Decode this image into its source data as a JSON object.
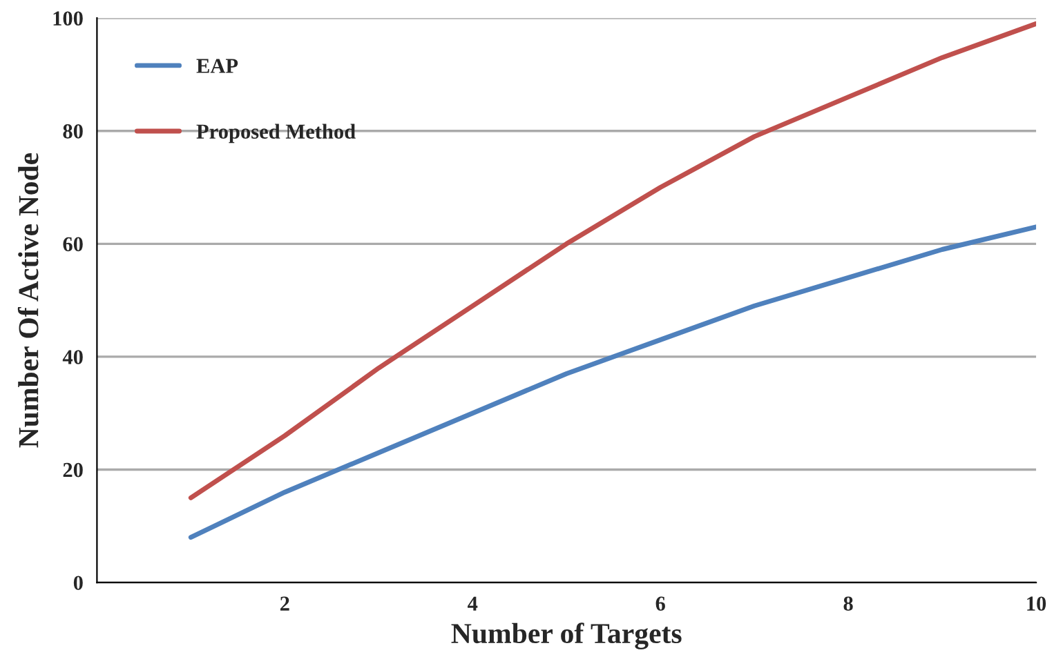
{
  "chart_data": {
    "type": "line",
    "xlabel": "Number of Targets",
    "ylabel": "Number Of Active Node",
    "x": [
      1,
      2,
      3,
      4,
      5,
      6,
      7,
      8,
      9,
      10
    ],
    "series": [
      {
        "name": "EAP",
        "color": "#4f81bd",
        "values": [
          8,
          16,
          23,
          30,
          37,
          43,
          49,
          54,
          59,
          63
        ]
      },
      {
        "name": "Proposed Method",
        "color": "#c0504d",
        "values": [
          15,
          26,
          38,
          49,
          60,
          70,
          79,
          86,
          93,
          99
        ]
      }
    ],
    "xlim": [
      0,
      10
    ],
    "xticks": [
      2,
      4,
      6,
      8,
      10
    ],
    "ylim": [
      0,
      100
    ],
    "yticks": [
      0,
      20,
      40,
      60,
      80,
      100
    ],
    "grid": "y",
    "legend": "top left",
    "marker": "none",
    "line_style": "solid"
  }
}
